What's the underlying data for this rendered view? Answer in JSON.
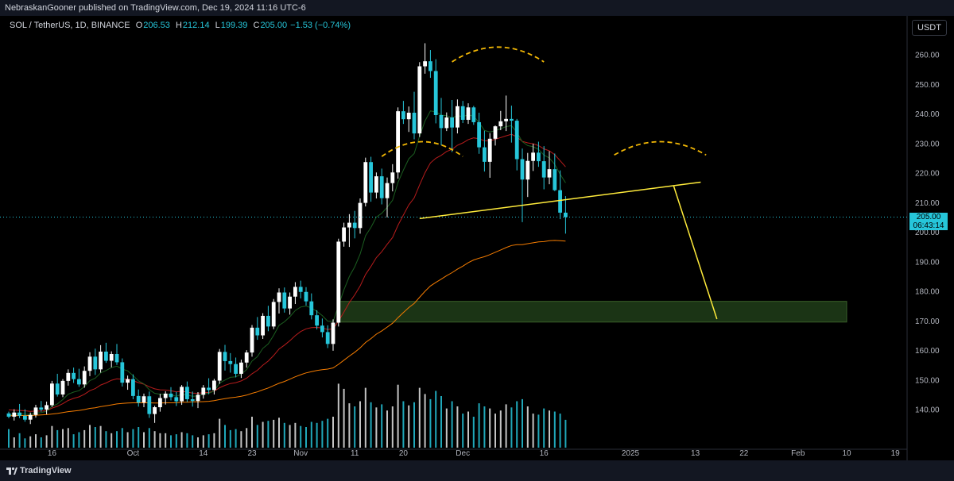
{
  "header": {
    "publish_line": "NebraskanGooner published on TradingView.com, Dec 19, 2024 11:16 UTC-6"
  },
  "legend": {
    "symbol": "SOL / TetherUS, 1D, BINANCE",
    "o_label": "O",
    "o_value": "206.53",
    "h_label": "H",
    "h_value": "212.14",
    "l_label": "L",
    "l_value": "199.39",
    "c_label": "C",
    "c_value": "205.00",
    "change": "−1.53 (−0.74%)"
  },
  "currency": "USDT",
  "price_tag": {
    "price": "205.00",
    "countdown": "06:43:14"
  },
  "footer": {
    "brand": "TradingView"
  },
  "colors": {
    "up": "#ffffff",
    "down": "#26c6da",
    "ema_short": "#1b5e20",
    "ema_mid": "#b71c1c",
    "ema_long": "#f57c00",
    "pattern": "#ffeb3b",
    "zone": "#1e3a17"
  },
  "chart_data": {
    "type": "candlestick",
    "symbol": "SOL / TetherUS",
    "interval": "1D",
    "ylim": [
      134,
      265
    ],
    "y_ticks": [
      140,
      150,
      160,
      170,
      180,
      190,
      200,
      210,
      220,
      230,
      240,
      250,
      260
    ],
    "x_ticks": [
      "16",
      "Oct",
      "14",
      "23",
      "Nov",
      "11",
      "20",
      "Dec",
      "16",
      "2025",
      "13",
      "22",
      "Feb",
      "10",
      "19"
    ],
    "first_date": "2024-09-08",
    "last_date": "2024-12-19",
    "candles": [
      [
        138.6,
        139.2,
        137.0,
        137.5
      ],
      [
        137.5,
        140.0,
        136.2,
        138.9
      ],
      [
        138.9,
        141.8,
        137.0,
        137.8
      ],
      [
        137.8,
        140.0,
        135.8,
        136.5
      ],
      [
        136.5,
        138.9,
        135.0,
        138.1
      ],
      [
        138.1,
        141.5,
        137.2,
        140.6
      ],
      [
        140.6,
        142.8,
        139.2,
        139.9
      ],
      [
        139.9,
        142.6,
        138.3,
        141.4
      ],
      [
        141.4,
        149.6,
        140.8,
        148.7
      ],
      [
        148.7,
        152.0,
        144.3,
        145.0
      ],
      [
        145.0,
        150.2,
        144.1,
        149.6
      ],
      [
        149.6,
        153.5,
        148.0,
        152.3
      ],
      [
        152.3,
        154.1,
        148.9,
        150.2
      ],
      [
        150.2,
        153.7,
        147.6,
        148.4
      ],
      [
        148.4,
        154.5,
        147.3,
        153.0
      ],
      [
        153.0,
        159.3,
        151.2,
        157.8
      ],
      [
        157.8,
        160.5,
        151.6,
        153.5
      ],
      [
        153.5,
        161.7,
        152.4,
        159.5
      ],
      [
        159.5,
        162.5,
        155.7,
        156.4
      ],
      [
        156.4,
        159.6,
        154.2,
        158.7
      ],
      [
        158.7,
        162.1,
        155.0,
        155.9
      ],
      [
        155.9,
        157.2,
        147.7,
        149.0
      ],
      [
        149.0,
        151.4,
        146.6,
        150.2
      ],
      [
        150.2,
        151.8,
        143.4,
        144.5
      ],
      [
        144.5,
        146.7,
        140.9,
        142.3
      ],
      [
        142.3,
        145.3,
        140.7,
        144.4
      ],
      [
        144.4,
        146.0,
        137.1,
        138.4
      ],
      [
        138.4,
        141.2,
        135.4,
        140.7
      ],
      [
        140.7,
        145.2,
        139.2,
        143.8
      ],
      [
        143.8,
        146.1,
        141.6,
        145.3
      ],
      [
        145.3,
        147.5,
        143.0,
        144.1
      ],
      [
        144.1,
        145.9,
        141.1,
        142.7
      ],
      [
        142.7,
        148.2,
        141.5,
        147.6
      ],
      [
        147.6,
        149.4,
        142.5,
        143.4
      ],
      [
        143.4,
        146.0,
        140.9,
        142.8
      ],
      [
        142.8,
        145.8,
        140.4,
        144.9
      ],
      [
        144.9,
        148.2,
        143.6,
        147.3
      ],
      [
        147.3,
        150.5,
        145.1,
        146.5
      ],
      [
        146.5,
        150.3,
        145.0,
        149.7
      ],
      [
        149.7,
        160.4,
        148.6,
        159.4
      ],
      [
        159.4,
        161.8,
        153.1,
        156.3
      ],
      [
        156.3,
        159.0,
        152.4,
        155.3
      ],
      [
        155.3,
        157.5,
        150.8,
        152.0
      ],
      [
        152.0,
        156.8,
        150.6,
        155.8
      ],
      [
        155.8,
        160.0,
        154.1,
        159.2
      ],
      [
        159.2,
        168.5,
        157.8,
        167.6
      ],
      [
        167.6,
        171.2,
        163.5,
        165.0
      ],
      [
        165.0,
        172.5,
        163.8,
        171.6
      ],
      [
        171.6,
        175.0,
        166.4,
        168.0
      ],
      [
        168.0,
        177.3,
        167.1,
        176.3
      ],
      [
        176.3,
        180.9,
        172.4,
        179.5
      ],
      [
        179.5,
        181.2,
        172.7,
        174.1
      ],
      [
        174.1,
        179.5,
        172.0,
        178.1
      ],
      [
        178.1,
        183.0,
        175.6,
        181.4
      ],
      [
        181.4,
        183.5,
        177.5,
        179.7
      ],
      [
        179.7,
        181.3,
        175.1,
        176.5
      ],
      [
        176.5,
        179.2,
        170.4,
        171.8
      ],
      [
        171.8,
        173.5,
        167.0,
        168.3
      ],
      [
        168.3,
        170.7,
        164.3,
        166.1
      ],
      [
        166.1,
        168.4,
        160.7,
        162.1
      ],
      [
        162.1,
        170.4,
        159.8,
        169.3
      ],
      [
        169.3,
        197.7,
        168.0,
        196.7
      ],
      [
        196.7,
        203.1,
        195.0,
        201.5
      ],
      [
        201.5,
        206.0,
        194.9,
        203.1
      ],
      [
        203.1,
        207.1,
        197.8,
        201.3
      ],
      [
        201.3,
        211.3,
        199.4,
        209.8
      ],
      [
        209.8,
        225.1,
        208.6,
        223.6
      ],
      [
        223.6,
        225.4,
        210.2,
        213.3
      ],
      [
        213.3,
        220.1,
        211.3,
        218.8
      ],
      [
        218.8,
        221.4,
        209.3,
        211.4
      ],
      [
        211.4,
        218.4,
        204.9,
        216.5
      ],
      [
        216.5,
        222.9,
        213.7,
        220.1
      ],
      [
        220.1,
        242.1,
        218.0,
        240.8
      ],
      [
        240.8,
        244.3,
        236.5,
        238.1
      ],
      [
        238.1,
        242.4,
        233.8,
        240.3
      ],
      [
        240.3,
        247.4,
        231.3,
        233.3
      ],
      [
        233.3,
        257.4,
        232.1,
        256.0
      ],
      [
        256.0,
        263.8,
        253.5,
        257.7
      ],
      [
        257.7,
        261.5,
        252.1,
        254.4
      ],
      [
        254.4,
        258.4,
        236.7,
        239.5
      ],
      [
        239.5,
        245.3,
        229.3,
        235.1
      ],
      [
        235.1,
        240.4,
        234.1,
        238.7
      ],
      [
        238.7,
        244.6,
        227.0,
        235.3
      ],
      [
        235.3,
        244.8,
        233.3,
        242.5
      ],
      [
        242.5,
        244.3,
        236.8,
        237.9
      ],
      [
        237.9,
        243.5,
        236.5,
        242.1
      ],
      [
        242.1,
        242.6,
        236.2,
        237.1
      ],
      [
        237.1,
        240.3,
        226.4,
        228.6
      ],
      [
        228.6,
        234.2,
        220.4,
        223.7
      ],
      [
        223.7,
        233.4,
        218.3,
        231.5
      ],
      [
        231.5,
        236.0,
        229.2,
        235.7
      ],
      [
        235.7,
        240.9,
        234.4,
        237.4
      ],
      [
        237.4,
        246.1,
        234.1,
        238.2
      ],
      [
        238.2,
        242.7,
        230.2,
        237.6
      ],
      [
        237.6,
        238.2,
        220.8,
        224.6
      ],
      [
        224.6,
        228.2,
        203.3,
        217.7
      ],
      [
        217.7,
        226.7,
        211.8,
        224.0
      ],
      [
        224.0,
        229.8,
        220.6,
        226.8
      ],
      [
        226.8,
        230.5,
        222.0,
        223.9
      ],
      [
        223.9,
        229.0,
        214.4,
        218.4
      ],
      [
        218.4,
        227.3,
        216.1,
        221.2
      ],
      [
        221.2,
        226.5,
        213.8,
        214.1
      ],
      [
        214.1,
        220.8,
        204.3,
        206.5
      ],
      [
        206.5,
        212.1,
        199.4,
        205.0
      ]
    ],
    "volume_scale": [
      0,
      1
    ],
    "volumes": [
      0.18,
      0.1,
      0.14,
      0.09,
      0.11,
      0.13,
      0.1,
      0.12,
      0.21,
      0.17,
      0.18,
      0.19,
      0.13,
      0.15,
      0.17,
      0.22,
      0.2,
      0.21,
      0.16,
      0.14,
      0.16,
      0.19,
      0.15,
      0.18,
      0.2,
      0.15,
      0.19,
      0.16,
      0.14,
      0.14,
      0.12,
      0.13,
      0.15,
      0.14,
      0.12,
      0.1,
      0.12,
      0.13,
      0.14,
      0.28,
      0.22,
      0.17,
      0.18,
      0.16,
      0.19,
      0.3,
      0.22,
      0.25,
      0.26,
      0.27,
      0.29,
      0.24,
      0.22,
      0.24,
      0.21,
      0.2,
      0.25,
      0.24,
      0.26,
      0.28,
      0.3,
      0.62,
      0.57,
      0.43,
      0.4,
      0.45,
      0.58,
      0.44,
      0.39,
      0.42,
      0.36,
      0.4,
      0.61,
      0.45,
      0.41,
      0.44,
      0.58,
      0.52,
      0.47,
      0.55,
      0.5,
      0.38,
      0.45,
      0.4,
      0.33,
      0.35,
      0.3,
      0.43,
      0.4,
      0.38,
      0.33,
      0.36,
      0.42,
      0.39,
      0.45,
      0.47,
      0.4,
      0.33,
      0.32,
      0.38,
      0.36,
      0.35,
      0.33,
      0.27
    ],
    "ema_short": [
      138.1,
      138.4,
      138.5,
      138.3,
      138.3,
      138.7,
      138.9,
      139.3,
      141.0,
      141.8,
      143.3,
      145.1,
      145.8,
      146.3,
      147.6,
      149.7,
      150.5,
      152.3,
      153.1,
      154.1,
      154.6,
      153.6,
      153.0,
      151.4,
      149.6,
      148.6,
      146.6,
      145.4,
      145.1,
      145.1,
      144.9,
      144.4,
      145.1,
      144.8,
      144.4,
      144.5,
      145.2,
      145.4,
      146.2,
      148.9,
      149.9,
      150.8,
      151.0,
      151.9,
      153.4,
      156.3,
      157.8,
      160.6,
      162.1,
      165.0,
      168.4,
      169.6,
      171.3,
      173.4,
      174.6,
      174.9,
      174.3,
      173.1,
      171.7,
      169.8,
      169.7,
      175.1,
      180.4,
      184.9,
      188.2,
      192.5,
      198.7,
      201.5,
      205.0,
      206.3,
      208.3,
      210.7,
      216.7,
      220.9,
      224.7,
      226.5,
      232.4,
      237.5,
      240.9,
      240.6,
      239.5,
      239.3,
      238.5,
      239.3,
      239.0,
      239.6,
      239.1,
      237.0,
      234.3,
      233.8,
      234.2,
      234.9,
      235.6,
      235.9,
      233.7,
      230.5,
      229.2,
      228.8,
      227.9,
      226.0,
      225.0,
      222.8,
      219.5,
      216.6
    ],
    "ema_mid": [
      139.8,
      139.7,
      139.6,
      139.5,
      139.3,
      139.4,
      139.4,
      139.5,
      140.4,
      141.0,
      141.9,
      143.0,
      143.7,
      144.2,
      145.1,
      146.3,
      147.0,
      148.2,
      148.9,
      149.8,
      150.3,
      150.2,
      150.2,
      149.7,
      149.0,
      148.5,
      147.6,
      146.9,
      146.6,
      146.5,
      146.3,
      145.9,
      146.1,
      145.8,
      145.5,
      145.4,
      145.6,
      145.7,
      146.1,
      147.3,
      148.1,
      148.7,
      149.0,
      149.6,
      150.5,
      152.0,
      153.2,
      154.9,
      156.3,
      158.2,
      160.4,
      161.7,
      163.2,
      164.9,
      166.3,
      167.2,
      167.6,
      167.7,
      167.5,
      167.0,
      167.2,
      169.8,
      172.9,
      176.1,
      178.7,
      181.7,
      185.6,
      188.3,
      191.3,
      193.3,
      195.8,
      198.1,
      202.2,
      205.7,
      209.1,
      211.5,
      215.9,
      220.0,
      223.3,
      224.9,
      225.9,
      227.2,
      227.9,
      229.3,
      230.1,
      231.2,
      231.8,
      231.5,
      230.8,
      230.8,
      231.3,
      231.9,
      232.5,
      233.0,
      232.1,
      230.6,
      230.1,
      229.8,
      229.2,
      228.1,
      227.4,
      226.1,
      224.1,
      222.0
    ],
    "ema_long": [
      137.8,
      137.8,
      137.9,
      137.9,
      137.9,
      138.0,
      138.1,
      138.2,
      138.4,
      138.6,
      138.9,
      139.2,
      139.4,
      139.6,
      139.9,
      140.3,
      140.5,
      140.9,
      141.2,
      141.5,
      141.8,
      142.0,
      142.1,
      142.2,
      142.2,
      142.2,
      142.2,
      142.1,
      142.1,
      142.2,
      142.2,
      142.2,
      142.4,
      142.4,
      142.5,
      142.5,
      142.6,
      142.7,
      142.9,
      143.3,
      143.6,
      143.9,
      144.1,
      144.4,
      144.8,
      145.4,
      145.9,
      146.6,
      147.2,
      148.0,
      148.8,
      149.4,
      150.2,
      151.0,
      151.7,
      152.3,
      152.7,
      153.1,
      153.4,
      153.6,
      154.0,
      155.2,
      156.6,
      158.0,
      159.3,
      160.8,
      162.6,
      163.9,
      165.4,
      166.5,
      167.8,
      169.1,
      171.0,
      172.7,
      174.4,
      175.8,
      177.9,
      179.9,
      181.7,
      182.9,
      184.0,
      185.2,
      186.2,
      187.4,
      188.4,
      189.6,
      190.5,
      191.1,
      191.6,
      192.3,
      193.1,
      193.9,
      194.7,
      195.4,
      195.7,
      195.7,
      196.0,
      196.3,
      196.6,
      196.7,
      197.0,
      197.1,
      197.0,
      196.9
    ],
    "annotations": {
      "neckline": [
        [
          76,
          204.5
        ],
        [
          128,
          216.8
        ]
      ],
      "projection": [
        [
          123,
          215.5
        ],
        [
          131,
          170.5
        ]
      ],
      "support_zone": {
        "from_index": 61,
        "to_index": 155,
        "low": 169.5,
        "high": 176.5
      },
      "arcs": [
        {
          "from": 69,
          "to": 84,
          "peak": 230.5,
          "ends": 225.5
        },
        {
          "from": 82,
          "to": 99,
          "peak": 262.5,
          "ends": 257.5
        },
        {
          "from": 112,
          "to": 129,
          "peak": 230.5,
          "ends": 226.0
        }
      ],
      "last_price": 205.0
    }
  }
}
